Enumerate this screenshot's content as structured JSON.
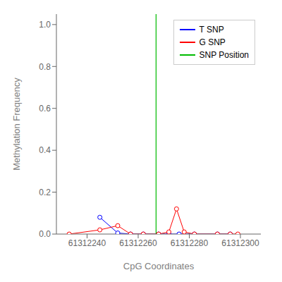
{
  "chart_data": {
    "type": "line",
    "xlabel": "CpG Coordinates",
    "ylabel": "Methylation Frequency",
    "xlim": [
      61312228,
      61312308
    ],
    "xticks": [
      61312240,
      61312260,
      61312280,
      61312300
    ],
    "ylim": [
      0.0,
      1.05
    ],
    "yticks": [
      {
        "value": 0.0,
        "label": "0.0"
      },
      0.2,
      0.4,
      0.6,
      0.8,
      {
        "value": 1.0,
        "label": "1.0"
      }
    ],
    "grid": false,
    "legend": "upper right",
    "series": [
      {
        "name": "T SNP",
        "color": "#0000FF",
        "marker": "circle",
        "line_style": "solid",
        "x": [
          61312245,
          61312252,
          61312257,
          61312262,
          61312268,
          61312272,
          61312276,
          61312282,
          61312291,
          61312296
        ],
        "values": [
          0.08,
          0.005,
          0.0,
          0.0,
          0.0,
          0.0,
          0.0,
          0.0,
          0.0,
          0.0
        ]
      },
      {
        "name": "G SNP",
        "color": "#FF0000",
        "marker": "circle",
        "line_style": "solid",
        "x": [
          61312233,
          61312245,
          61312252,
          61312257,
          61312262,
          61312268,
          61312272,
          61312275,
          61312278,
          61312282,
          61312291,
          61312296,
          61312299
        ],
        "values": [
          0.0,
          0.02,
          0.04,
          0.0,
          0.0,
          0.0,
          0.01,
          0.12,
          0.01,
          0.0,
          0.0,
          0.0,
          0.0
        ]
      },
      {
        "name": "SNP Position",
        "type": "vline",
        "color": "#00BB00",
        "line_style": "solid",
        "x": [
          61312267
        ]
      }
    ]
  }
}
